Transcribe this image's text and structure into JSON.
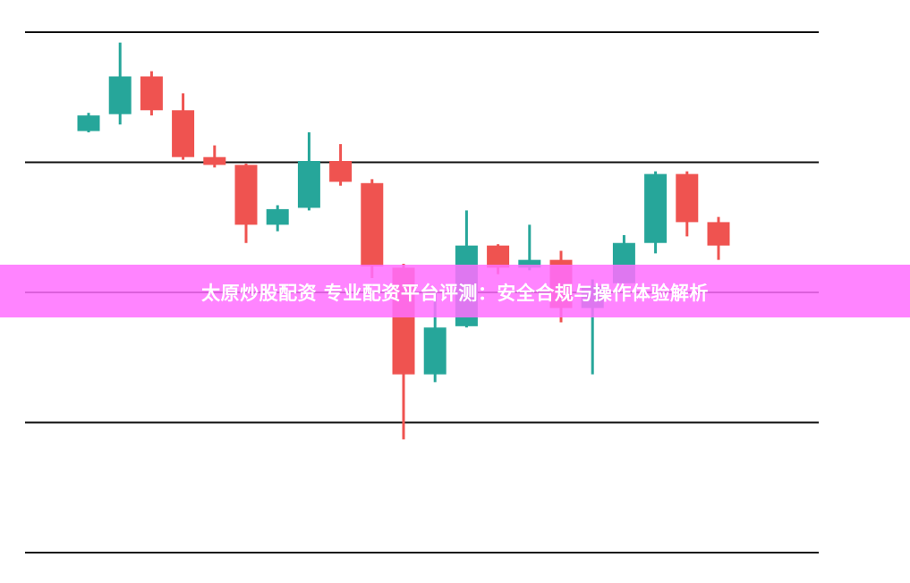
{
  "banner": {
    "title": "太原炒股配资 专业配资平台评测：安全合规与操作体验解析",
    "color": "#ff6eff"
  },
  "chart_data": {
    "type": "candlestick",
    "title": "",
    "xlabel": "",
    "ylabel": "",
    "ylim": [
      0,
      4
    ],
    "gridlines": [
      0,
      1,
      2,
      3,
      4
    ],
    "grid": "horizontal",
    "up_color": "#26a69a",
    "down_color": "#ef5350",
    "candles": [
      {
        "o": 3.24,
        "c": 3.36,
        "h": 3.38,
        "l": 3.23
      },
      {
        "o": 3.37,
        "c": 3.66,
        "h": 3.92,
        "l": 3.29
      },
      {
        "o": 3.66,
        "c": 3.4,
        "h": 3.7,
        "l": 3.36
      },
      {
        "o": 3.4,
        "c": 3.04,
        "h": 3.53,
        "l": 3.02
      },
      {
        "o": 3.04,
        "c": 2.98,
        "h": 3.13,
        "l": 2.96
      },
      {
        "o": 2.98,
        "c": 2.52,
        "h": 2.99,
        "l": 2.38
      },
      {
        "o": 2.52,
        "c": 2.64,
        "h": 2.67,
        "l": 2.47
      },
      {
        "o": 2.65,
        "c": 3.01,
        "h": 3.23,
        "l": 2.63
      },
      {
        "o": 3.01,
        "c": 2.85,
        "h": 3.14,
        "l": 2.82
      },
      {
        "o": 2.84,
        "c": 2.2,
        "h": 2.87,
        "l": 2.11
      },
      {
        "o": 2.19,
        "c": 1.37,
        "h": 2.22,
        "l": 0.87
      },
      {
        "o": 1.37,
        "c": 1.73,
        "h": 2.0,
        "l": 1.31
      },
      {
        "o": 1.74,
        "c": 2.36,
        "h": 2.63,
        "l": 1.73
      },
      {
        "o": 2.36,
        "c": 2.19,
        "h": 2.37,
        "l": 2.14
      },
      {
        "o": 2.19,
        "c": 2.25,
        "h": 2.52,
        "l": 2.17
      },
      {
        "o": 2.25,
        "c": 1.88,
        "h": 2.32,
        "l": 1.77
      },
      {
        "o": 1.88,
        "c": 2.05,
        "h": 2.1,
        "l": 1.37
      },
      {
        "o": 2.07,
        "c": 2.38,
        "h": 2.44,
        "l": 2.07
      },
      {
        "o": 2.38,
        "c": 2.91,
        "h": 2.93,
        "l": 2.3
      },
      {
        "o": 2.91,
        "c": 2.54,
        "h": 2.93,
        "l": 2.43
      },
      {
        "o": 2.54,
        "c": 2.36,
        "h": 2.58,
        "l": 2.25
      }
    ]
  }
}
